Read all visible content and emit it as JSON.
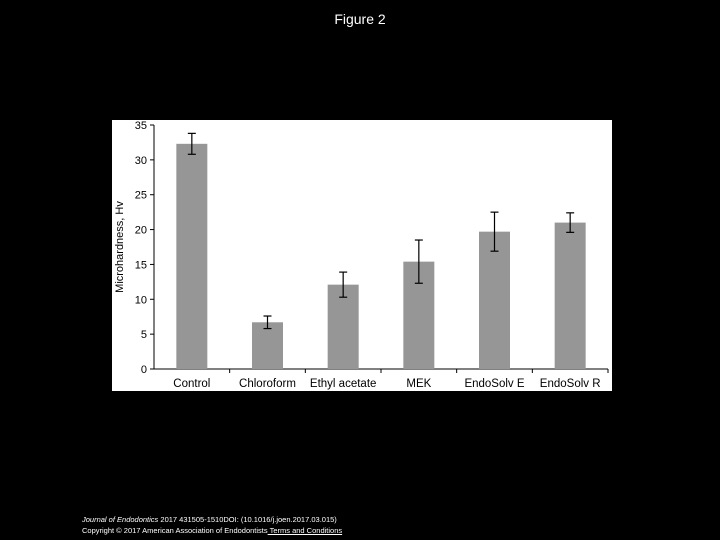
{
  "slide": {
    "title": "Figure 2"
  },
  "footer": {
    "journal": "Journal of Endodontics",
    "citation": " 2017 431505-1510DOI: (10.1016/j.joen.2017.03.015)",
    "copyright": "Copyright © 2017 American Association of Endodontists",
    "terms_link": " Terms and Conditions"
  },
  "colors": {
    "background": "#000000",
    "panel": "#ffffff",
    "bar": "#969696",
    "text": "#000000"
  },
  "chart_data": {
    "type": "bar",
    "categories": [
      "Control",
      "Chloroform",
      "Ethyl acetate",
      "MEK",
      "EndoSolv E",
      "EndoSolv R"
    ],
    "series": [
      {
        "values": [
          32.3,
          6.7,
          12.1,
          15.4,
          19.7,
          21.0
        ],
        "errors": [
          1.5,
          0.9,
          1.8,
          3.1,
          2.8,
          1.4
        ]
      }
    ],
    "title": "",
    "xlabel": "",
    "ylabel": "Microhardness, Hv",
    "ylim": [
      0,
      35
    ],
    "yticks": [
      0,
      5,
      10,
      15,
      20,
      25,
      30,
      35
    ],
    "grid": false,
    "legend": "none"
  }
}
